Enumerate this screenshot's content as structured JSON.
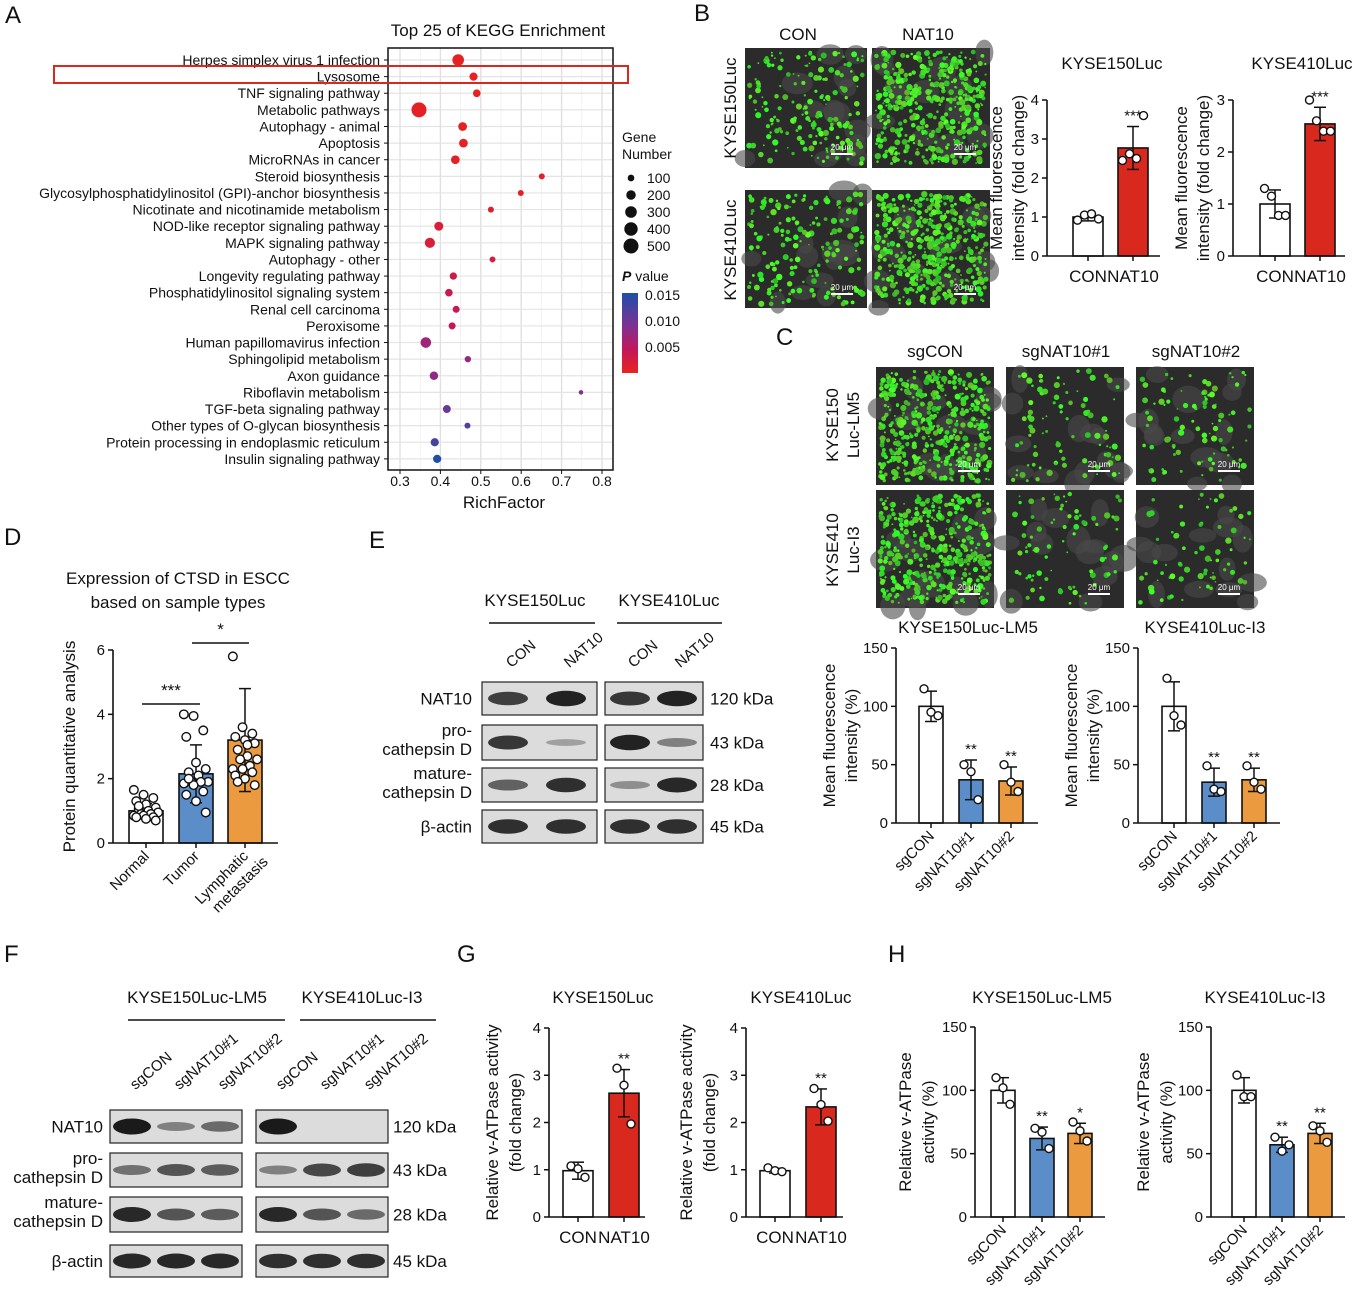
{
  "panel_letters": [
    "A",
    "B",
    "C",
    "D",
    "E",
    "F",
    "G",
    "H"
  ],
  "kegg": {
    "title": "Top 25 of KEGG Enrichment",
    "xlabel": "RichFactor",
    "highlight": "Lysosome",
    "highlight_color": "#d9281e",
    "size_legend_title": [
      "Gene",
      "Number"
    ],
    "size_legend": [
      100,
      200,
      300,
      400,
      500
    ],
    "color_legend_title": [
      "P",
      " value"
    ],
    "color_legend_ticks": [
      "0.015",
      "0.010",
      "0.005"
    ],
    "colors": {
      "low_p": "#e8231f",
      "mid_p": "#c2185b",
      "high_p": "#1f4fa8"
    }
  },
  "chart_data": [
    {
      "id": "A",
      "type": "scatter",
      "title": "Top 25 of KEGG Enrichment",
      "xlabel": "RichFactor",
      "ylabel": "",
      "xlim": [
        0.27,
        0.83
      ],
      "xticks": [
        "0.3",
        "0.4",
        "0.5",
        "0.6",
        "0.7",
        "0.8"
      ],
      "grid": true,
      "legend": "right",
      "categories": [
        "Herpes simplex virus 1 infection",
        "Lysosome",
        "TNF signaling pathway",
        "Metabolic pathways",
        "Autophagy - animal",
        "Apoptosis",
        "MicroRNAs in cancer",
        "Steroid biosynthesis",
        "Glycosylphosphatidylinositol (GPI)-anchor biosynthesis",
        "Nicotinate and nicotinamide metabolism",
        "NOD-like receptor signaling pathway",
        "MAPK signaling pathway",
        "Autophagy - other",
        "Longevity regulating pathway",
        "Phosphatidylinositol signaling system",
        "Renal cell carcinoma",
        "Peroxisome",
        "Human papillomavirus infection",
        "Sphingolipid metabolism",
        "Axon guidance",
        "Riboflavin metabolism",
        "TGF-beta signaling pathway",
        "Other types of O-glycan biosynthesis",
        "Protein processing in endoplasmic reticulum",
        "Insulin signaling pathway"
      ],
      "rich_factor": [
        0.444,
        0.482,
        0.49,
        0.347,
        0.455,
        0.457,
        0.437,
        0.651,
        0.599,
        0.525,
        0.396,
        0.374,
        0.529,
        0.432,
        0.421,
        0.439,
        0.429,
        0.364,
        0.468,
        0.384,
        0.748,
        0.416,
        0.467,
        0.386,
        0.392
      ],
      "gene_number": [
        300,
        150,
        130,
        500,
        170,
        170,
        170,
        80,
        80,
        80,
        180,
        230,
        80,
        120,
        130,
        110,
        110,
        250,
        90,
        160,
        45,
        140,
        80,
        150,
        150
      ],
      "p_value": [
        0.0005,
        0.0006,
        0.0006,
        0.0007,
        0.0008,
        0.0008,
        0.0009,
        0.001,
        0.0012,
        0.002,
        0.003,
        0.003,
        0.0035,
        0.005,
        0.0055,
        0.006,
        0.0065,
        0.009,
        0.0095,
        0.01,
        0.0105,
        0.012,
        0.013,
        0.014,
        0.016
      ]
    },
    {
      "id": "B1",
      "type": "bar",
      "title": "KYSE150Luc",
      "ylabel": [
        "Mean fluorescence",
        "intensity (fold change)"
      ],
      "ylim": [
        0,
        4
      ],
      "yticks": [
        0,
        1,
        2,
        3,
        4
      ],
      "categories": [
        "CON",
        "NAT10"
      ],
      "colors": [
        "#ffffff",
        "#d9281e"
      ],
      "values": [
        1.0,
        2.77
      ],
      "sd": [
        0.1,
        0.55
      ],
      "points": [
        [
          0.92,
          1.05,
          1.08,
          0.95
        ],
        [
          2.45,
          2.62,
          2.5,
          3.6
        ]
      ],
      "significance": [
        "",
        "***"
      ]
    },
    {
      "id": "B2",
      "type": "bar",
      "title": "KYSE410Luc",
      "ylabel": [
        "Mean fluorescence",
        "intensity (fold change)"
      ],
      "ylim": [
        0,
        3
      ],
      "yticks": [
        0,
        1,
        2,
        3
      ],
      "categories": [
        "CON",
        "NAT10"
      ],
      "colors": [
        "#ffffff",
        "#d9281e"
      ],
      "values": [
        1.0,
        2.54
      ],
      "sd": [
        0.27,
        0.32
      ],
      "points": [
        [
          1.3,
          1.15,
          0.78,
          0.78
        ],
        [
          3.0,
          2.6,
          2.4,
          2.4
        ]
      ],
      "significance": [
        "",
        "***"
      ]
    },
    {
      "id": "C1",
      "type": "bar",
      "title": "KYSE150Luc-LM5",
      "ylabel": [
        "Mean fluorescence",
        "intensity (%)"
      ],
      "ylim": [
        0,
        150
      ],
      "yticks": [
        0,
        50,
        100,
        150
      ],
      "categories": [
        "sgCON",
        "sgNAT10#1",
        "sgNAT10#2"
      ],
      "colors": [
        "#ffffff",
        "#5b8ec9",
        "#ec9a3f"
      ],
      "values": [
        100,
        37,
        36
      ],
      "sd": [
        13,
        17,
        12
      ],
      "points": [
        [
          115,
          95,
          92
        ],
        [
          50,
          44,
          20
        ],
        [
          50,
          35,
          27
        ]
      ],
      "significance": [
        "",
        "**",
        "**"
      ]
    },
    {
      "id": "C2",
      "type": "bar",
      "title": "KYSE410Luc-I3",
      "ylabel": [
        "Mean fluorescence",
        "intensity (%)"
      ],
      "ylim": [
        0,
        150
      ],
      "yticks": [
        0,
        50,
        100,
        150
      ],
      "categories": [
        "sgCON",
        "sgNAT10#1",
        "sgNAT10#2"
      ],
      "colors": [
        "#ffffff",
        "#5b8ec9",
        "#ec9a3f"
      ],
      "values": [
        100,
        35,
        37
      ],
      "sd": [
        21,
        12,
        10
      ],
      "points": [
        [
          124,
          92,
          84
        ],
        [
          49,
          29,
          27
        ],
        [
          49,
          35,
          29
        ]
      ],
      "significance": [
        "",
        "**",
        "**"
      ]
    },
    {
      "id": "D",
      "type": "bar",
      "title": [
        "Expression of CTSD in ESCC",
        "based on sample types"
      ],
      "ylabel": [
        "Protein quantitative analysis"
      ],
      "ylim": [
        0,
        6
      ],
      "yticks": [
        0,
        2,
        4,
        6
      ],
      "categories": [
        "Normal",
        "Tumor",
        "Lymphatic\nmetastasis"
      ],
      "colors": [
        "#ffffff",
        "#5b8ec9",
        "#ec9a3f"
      ],
      "values": [
        1.0,
        2.15,
        3.2
      ],
      "sd": [
        0.22,
        0.9,
        1.6
      ],
      "points": [
        [
          1.65,
          1.5,
          1.4,
          1.3,
          1.2,
          1.1,
          1.05,
          1.0,
          0.95,
          0.9,
          0.9,
          0.85,
          0.85,
          0.8,
          0.8,
          0.75,
          0.7,
          1.15
        ],
        [
          4.0,
          3.95,
          3.5,
          3.3,
          2.5,
          2.3,
          2.2,
          2.1,
          1.9,
          1.9,
          1.9,
          1.85,
          1.8,
          1.6,
          1.5,
          1.3,
          0.95,
          2.0
        ],
        [
          5.8,
          3.6,
          3.4,
          3.3,
          3.2,
          3.1,
          2.9,
          2.7,
          2.6,
          2.6,
          2.4,
          2.3,
          2.3,
          2.2,
          2.1,
          2.0,
          1.8,
          1.9,
          3.05
        ]
      ],
      "significance": [
        "",
        "",
        ""
      ],
      "sig_brackets": [
        {
          "from": 0,
          "to": 1,
          "label": "***"
        },
        {
          "from": 1,
          "to": 2,
          "label": "*"
        }
      ]
    },
    {
      "id": "G1",
      "type": "bar",
      "title": "KYSE150Luc",
      "ylabel": [
        "Relative v-ATPase activity",
        "(fold change)"
      ],
      "ylim": [
        0,
        4
      ],
      "yticks": [
        0,
        1,
        2,
        3,
        4
      ],
      "categories": [
        "CON",
        "NAT10"
      ],
      "colors": [
        "#ffffff",
        "#d9281e"
      ],
      "values": [
        0.98,
        2.62
      ],
      "sd": [
        0.18,
        0.5
      ],
      "points": [
        [
          1.08,
          1.02,
          0.84
        ],
        [
          3.15,
          2.79,
          1.97
        ]
      ],
      "significance": [
        "",
        "**"
      ]
    },
    {
      "id": "G2",
      "type": "bar",
      "title": "KYSE410Luc",
      "ylabel": [
        "Relative v-ATPase activity",
        "(fold change)"
      ],
      "ylim": [
        0,
        4
      ],
      "yticks": [
        0,
        1,
        2,
        3,
        4
      ],
      "categories": [
        "CON",
        "NAT10"
      ],
      "colors": [
        "#ffffff",
        "#d9281e"
      ],
      "values": [
        0.98,
        2.33
      ],
      "sd": [
        0.05,
        0.38
      ],
      "points": [
        [
          1.04,
          0.98,
          0.96
        ],
        [
          2.72,
          2.38,
          2.03
        ]
      ],
      "significance": [
        "",
        "**"
      ]
    },
    {
      "id": "H1",
      "type": "bar",
      "title": "KYSE150Luc-LM5",
      "ylabel": [
        "Relative v-ATPase",
        "activity (%)"
      ],
      "ylim": [
        0,
        150
      ],
      "yticks": [
        0,
        50,
        100,
        150
      ],
      "categories": [
        "sgCON",
        "sgNAT10#1",
        "sgNAT10#2"
      ],
      "colors": [
        "#ffffff",
        "#5b8ec9",
        "#ec9a3f"
      ],
      "values": [
        100,
        62,
        66
      ],
      "sd": [
        10,
        9,
        8
      ],
      "points": [
        [
          110,
          102,
          89
        ],
        [
          70,
          67,
          54
        ],
        [
          75,
          68,
          60
        ]
      ],
      "significance": [
        "",
        "**",
        "*"
      ]
    },
    {
      "id": "H2",
      "type": "bar",
      "title": "KYSE410Luc-I3",
      "ylabel": [
        "Relative v-ATPase",
        "activity (%)"
      ],
      "ylim": [
        0,
        150
      ],
      "yticks": [
        0,
        50,
        100,
        150
      ],
      "categories": [
        "sgCON",
        "sgNAT10#1",
        "sgNAT10#2"
      ],
      "colors": [
        "#ffffff",
        "#5b8ec9",
        "#ec9a3f"
      ],
      "values": [
        100,
        57,
        66
      ],
      "sd": [
        10,
        6,
        8
      ],
      "points": [
        [
          112,
          95,
          95
        ],
        [
          63,
          52,
          57
        ],
        [
          72,
          68,
          59
        ]
      ],
      "significance": [
        "",
        "**",
        "**"
      ]
    }
  ],
  "microscopy": {
    "B": {
      "columns": [
        "CON",
        "NAT10"
      ],
      "rows": [
        "KYSE150Luc",
        "KYSE410Luc"
      ],
      "scale_bar": "20 μm"
    },
    "C": {
      "columns": [
        "sgCON",
        "sgNAT10#1",
        "sgNAT10#2"
      ],
      "rows": [
        [
          "KYSE150",
          "Luc-LM5"
        ],
        [
          "KYSE410",
          "Luc-I3"
        ]
      ],
      "scale_bar": "20 μm"
    }
  },
  "blots": {
    "E": {
      "groups": [
        "KYSE150Luc",
        "KYSE410Luc"
      ],
      "lanes": [
        [
          "CON",
          "NAT10"
        ],
        [
          "CON",
          "NAT10"
        ]
      ],
      "rows": [
        {
          "label": "NAT10",
          "kda": "120 kDa",
          "intensity": [
            [
              0.75,
              0.95
            ],
            [
              0.8,
              0.95
            ]
          ]
        },
        {
          "label": "pro-\ncathepsin D",
          "kda": "43 kDa",
          "intensity": [
            [
              0.8,
              0.08
            ],
            [
              0.95,
              0.3
            ]
          ]
        },
        {
          "label": "mature-\ncathepsin D",
          "kda": "28 kDa",
          "intensity": [
            [
              0.5,
              0.85
            ],
            [
              0.2,
              0.9
            ]
          ]
        },
        {
          "label": "β-actin",
          "kda": "45 kDa",
          "intensity": [
            [
              0.85,
              0.85
            ],
            [
              0.85,
              0.85
            ]
          ]
        }
      ]
    },
    "F": {
      "groups": [
        "KYSE150Luc-LM5",
        "KYSE410Luc-I3"
      ],
      "lanes": [
        [
          "sgCON",
          "sgNAT10#1",
          "sgNAT10#2"
        ],
        [
          "sgCON",
          "sgNAT10#1",
          "sgNAT10#2"
        ]
      ],
      "rows": [
        {
          "label": "NAT10",
          "kda": "120 kDa",
          "intensity": [
            [
              1,
              0.3,
              0.45
            ],
            [
              1,
              0,
              0
            ]
          ]
        },
        {
          "label": "pro-\ncathepsin D",
          "kda": "43 kDa",
          "intensity": [
            [
              0.4,
              0.6,
              0.55
            ],
            [
              0.3,
              0.7,
              0.75
            ]
          ]
        },
        {
          "label": "mature-\ncathepsin D",
          "kda": "28 kDa",
          "intensity": [
            [
              0.9,
              0.6,
              0.55
            ],
            [
              0.9,
              0.6,
              0.45
            ]
          ]
        },
        {
          "label": "β-actin",
          "kda": "45 kDa",
          "intensity": [
            [
              0.9,
              0.9,
              0.9
            ],
            [
              0.85,
              0.85,
              0.85
            ]
          ]
        }
      ]
    }
  }
}
